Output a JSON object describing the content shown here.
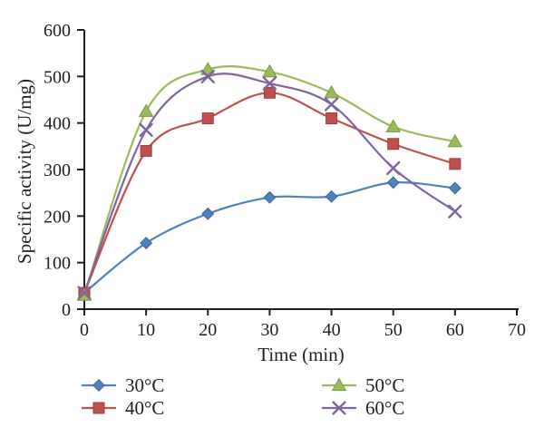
{
  "figure": {
    "background": "#ffffff",
    "text_color": "#231f20",
    "axis_color": "#231f20"
  },
  "chart_data": {
    "type": "line",
    "line_style": "smooth",
    "grid": false,
    "legend_position": "bottom",
    "xlabel": "Time (min)",
    "ylabel": "Specific activity (U/mg)",
    "xlim": [
      0,
      70
    ],
    "ylim": [
      0,
      600
    ],
    "xticks": [
      0,
      10,
      20,
      30,
      40,
      50,
      60,
      70
    ],
    "yticks": [
      0,
      100,
      200,
      300,
      400,
      500,
      600
    ],
    "x": [
      0,
      10,
      20,
      30,
      40,
      50,
      60
    ],
    "series": [
      {
        "name": "30°C",
        "color": "#4f81bd",
        "marker": "diamond",
        "values": [
          35,
          142,
          205,
          240,
          242,
          272,
          260
        ]
      },
      {
        "name": "40°C",
        "color": "#c0504d",
        "marker": "square",
        "values": [
          35,
          340,
          410,
          465,
          410,
          355,
          312
        ]
      },
      {
        "name": "50°C",
        "color": "#9bbb59",
        "marker": "triangle",
        "values": [
          30,
          425,
          515,
          510,
          465,
          392,
          360
        ]
      },
      {
        "name": "60°C",
        "color": "#8064a2",
        "marker": "x-cross",
        "values": [
          35,
          385,
          500,
          485,
          440,
          303,
          210
        ]
      }
    ]
  }
}
